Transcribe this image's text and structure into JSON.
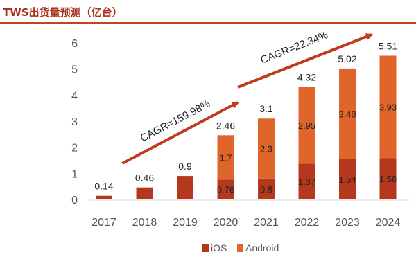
{
  "header": {
    "title": "TWS出货量预测（亿台）"
  },
  "colors": {
    "ios": "#b3381d",
    "android": "#e0652b",
    "axis_text": "#555555",
    "label": "#222222",
    "arrow": "#c03a1e",
    "header_rule": "#c2441c"
  },
  "chart_data": {
    "type": "bar",
    "stacked": true,
    "title": "TWS出货量预测（亿台）",
    "categories": [
      "2017",
      "2018",
      "2019",
      "2020",
      "2021",
      "2022",
      "2023",
      "2024"
    ],
    "series": [
      {
        "name": "iOS",
        "values": [
          0.14,
          0.46,
          0.9,
          0.76,
          0.8,
          1.37,
          1.54,
          1.58
        ],
        "labels": [
          null,
          null,
          null,
          "0.76",
          "0.8",
          "1.37",
          "1.54",
          "1.58"
        ]
      },
      {
        "name": "Android",
        "values": [
          0,
          0,
          0,
          1.7,
          2.3,
          2.95,
          3.48,
          3.93
        ],
        "labels": [
          null,
          null,
          null,
          "1.7",
          "2.3",
          "2.95",
          "3.48",
          "3.93"
        ]
      }
    ],
    "totals": [
      "0.14",
      "0.46",
      "0.9",
      "2.46",
      "3.1",
      "4.32",
      "5.02",
      "5.51"
    ],
    "yticks": [
      "0",
      "1",
      "2",
      "3",
      "4",
      "5",
      "6"
    ],
    "ylim": [
      0,
      6
    ],
    "xlabel": "",
    "ylabel": "",
    "grid": false,
    "legend": {
      "position": "bottom-center"
    },
    "annotations": [
      {
        "text": "CAGR=159.98%",
        "from": "2017",
        "to": "2020"
      },
      {
        "text": "CAGR=22.34%",
        "from": "2020",
        "to": "2024"
      }
    ]
  }
}
